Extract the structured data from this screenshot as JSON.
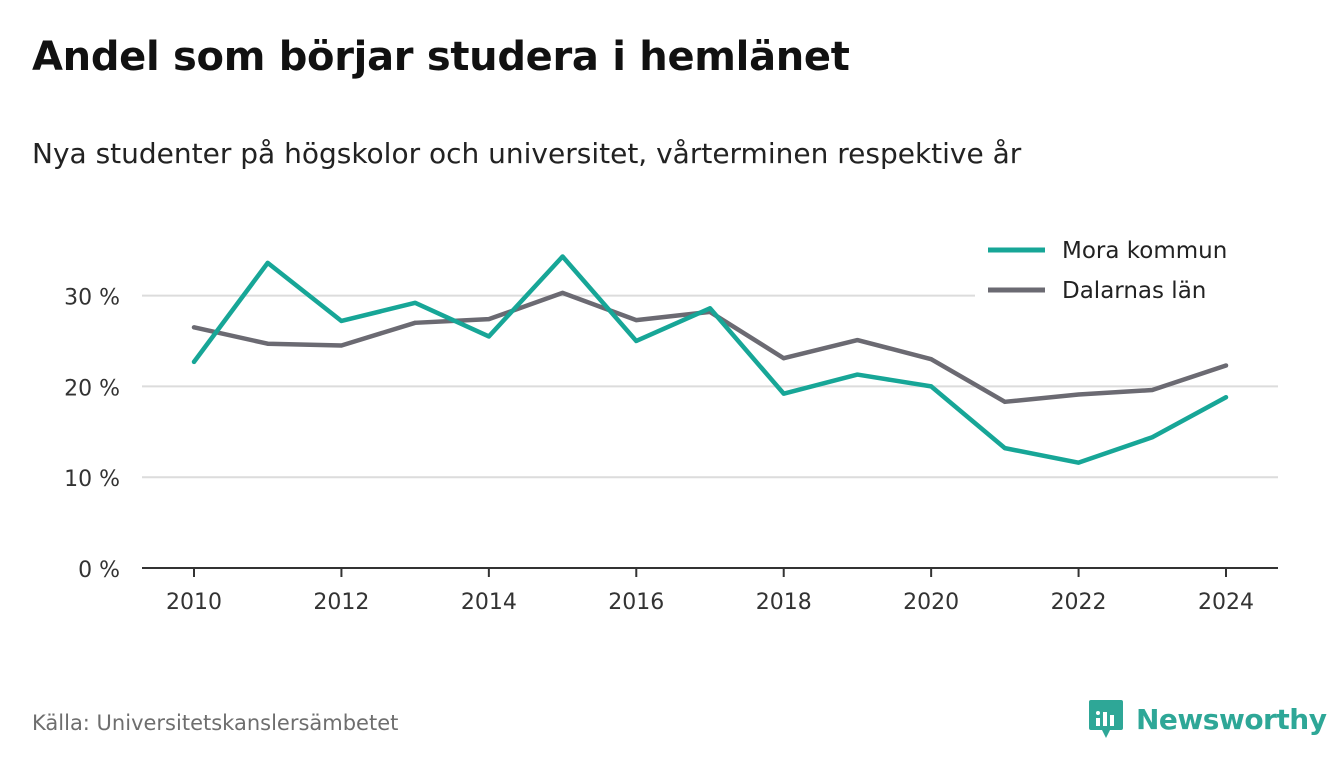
{
  "header": {
    "title": "Andel som börjar studera i hemlänet",
    "subtitle": "Nya studenter på högskolor och universitet, vårterminen respektive år"
  },
  "footer": {
    "source": "Källa: Universitetskanslersämbetet",
    "brand": "Newsworthy",
    "brand_icon": "bar-chart-speech-bubble-icon",
    "brand_color": "#2ea797"
  },
  "chart_data": {
    "type": "line",
    "x": [
      2010,
      2011,
      2012,
      2013,
      2014,
      2015,
      2016,
      2017,
      2018,
      2019,
      2020,
      2021,
      2022,
      2023,
      2024
    ],
    "x_ticks": [
      "2010",
      "2012",
      "2014",
      "2016",
      "2018",
      "2020",
      "2022",
      "2024"
    ],
    "y_ticks": [
      "0 %",
      "10 %",
      "20 %",
      "30 %"
    ],
    "ylim": [
      0,
      37
    ],
    "grid": true,
    "legend_position": "top-right",
    "series": [
      {
        "name": "Mora kommun",
        "color": "#17a697",
        "values": [
          22.7,
          33.6,
          27.2,
          29.2,
          25.5,
          34.3,
          25.0,
          28.6,
          19.2,
          21.3,
          20.0,
          13.2,
          11.6,
          14.4,
          18.8
        ]
      },
      {
        "name": "Dalarnas län",
        "color": "#6b6a72",
        "values": [
          26.5,
          24.7,
          24.5,
          27.0,
          27.4,
          30.3,
          27.3,
          28.2,
          23.1,
          25.1,
          23.0,
          18.3,
          19.1,
          19.6,
          22.3
        ]
      }
    ]
  }
}
